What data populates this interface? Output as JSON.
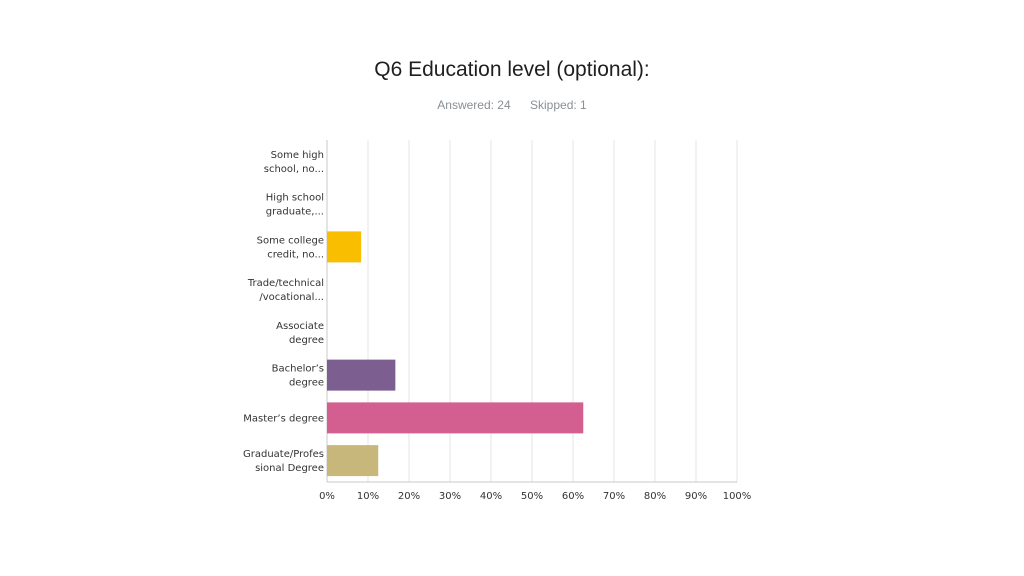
{
  "header": {
    "title": "Q6 Education level (optional):",
    "answered": "Answered: 24",
    "skipped": "Skipped: 1"
  },
  "chart_data": {
    "type": "bar",
    "orientation": "horizontal",
    "categories": [
      [
        "Some high",
        "school, no..."
      ],
      [
        "High school",
        "graduate,..."
      ],
      [
        "Some college",
        "credit, no..."
      ],
      [
        "Trade/technical",
        "/vocational..."
      ],
      [
        "Associate",
        "degree"
      ],
      [
        "Bachelor’s",
        "degree"
      ],
      [
        "Master’s degree"
      ],
      [
        "Graduate/Profes",
        "sional Degree"
      ]
    ],
    "values": [
      0,
      0,
      8.33,
      0,
      0,
      16.67,
      62.5,
      12.5
    ],
    "colors": [
      "#00bf6f",
      "#507cb6",
      "#f9be00",
      "#6bc8cd",
      "#ff8b4f",
      "#7d5e90",
      "#d25f90",
      "#c8b77b"
    ],
    "xlim": [
      0,
      100
    ],
    "xticks": [
      "0%",
      "10%",
      "20%",
      "30%",
      "40%",
      "50%",
      "60%",
      "70%",
      "80%",
      "90%",
      "100%"
    ],
    "grid": true
  }
}
